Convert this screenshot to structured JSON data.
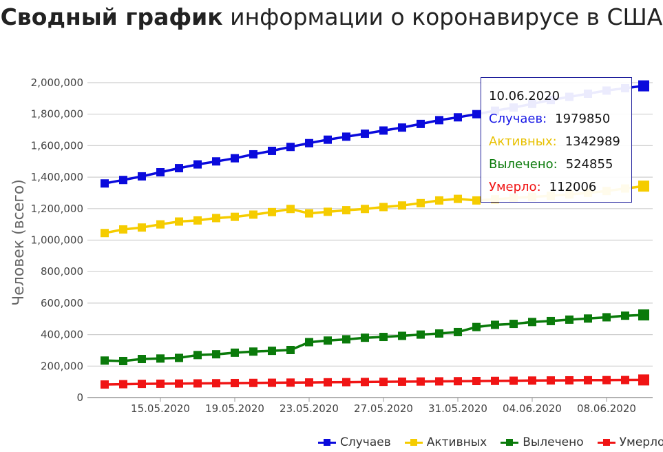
{
  "title": {
    "bold": "Сводный график",
    "rest": " информации о коронавирусе в США"
  },
  "chart_data": {
    "type": "line",
    "title": "Сводный график информации о коронавирусе в США",
    "ylabel": "Человек (всего)",
    "xlabel": "",
    "ylim": [
      0,
      2000000
    ],
    "yticks": [
      0,
      200000,
      400000,
      600000,
      800000,
      1000000,
      1200000,
      1400000,
      1600000,
      1800000,
      2000000
    ],
    "ytick_labels": [
      "0",
      "200,000",
      "400,000",
      "600,000",
      "800,000",
      "1,000,000",
      "1,200,000",
      "1,400,000",
      "1,600,000",
      "1,800,000",
      "2,000,000"
    ],
    "xtick_labels": [
      "15.05.2020",
      "19.05.2020",
      "23.05.2020",
      "27.05.2020",
      "31.05.2020",
      "04.06.2020",
      "08.06.2020"
    ],
    "x": [
      "12.05.2020",
      "13.05.2020",
      "14.05.2020",
      "15.05.2020",
      "16.05.2020",
      "17.05.2020",
      "18.05.2020",
      "19.05.2020",
      "20.05.2020",
      "21.05.2020",
      "22.05.2020",
      "23.05.2020",
      "24.05.2020",
      "25.05.2020",
      "26.05.2020",
      "27.05.2020",
      "28.05.2020",
      "29.05.2020",
      "30.05.2020",
      "31.05.2020",
      "01.06.2020",
      "02.06.2020",
      "03.06.2020",
      "04.06.2020",
      "05.06.2020",
      "06.06.2020",
      "07.06.2020",
      "08.06.2020",
      "09.06.2020",
      "10.06.2020"
    ],
    "grid": true,
    "legend_position": "bottom-right",
    "series": [
      {
        "name": "Случаев",
        "color": "#0a0adc",
        "values": [
          1360000,
          1382000,
          1405000,
          1431000,
          1457000,
          1481000,
          1500000,
          1520000,
          1545000,
          1567000,
          1592000,
          1616000,
          1638000,
          1657000,
          1676000,
          1696000,
          1715000,
          1738000,
          1762000,
          1780000,
          1800000,
          1822000,
          1842000,
          1865000,
          1890000,
          1910000,
          1930000,
          1950000,
          1965000,
          1979850
        ]
      },
      {
        "name": "Активных",
        "color": "#f5cc00",
        "values": [
          1045000,
          1068000,
          1080000,
          1100000,
          1118000,
          1125000,
          1140000,
          1148000,
          1162000,
          1178000,
          1198000,
          1170000,
          1180000,
          1190000,
          1198000,
          1210000,
          1220000,
          1235000,
          1252000,
          1262000,
          1252000,
          1260000,
          1268000,
          1275000,
          1282000,
          1290000,
          1300000,
          1312000,
          1328000,
          1342989
        ]
      },
      {
        "name": "Вылечено",
        "color": "#0a7a0a",
        "values": [
          235000,
          232000,
          245000,
          248000,
          252000,
          270000,
          275000,
          285000,
          292000,
          297000,
          302000,
          352000,
          362000,
          370000,
          380000,
          385000,
          392000,
          400000,
          407000,
          416000,
          448000,
          462000,
          468000,
          480000,
          486000,
          495000,
          502000,
          510000,
          520000,
          524855
        ]
      },
      {
        "name": "Умерло",
        "color": "#f01414",
        "values": [
          83000,
          85000,
          87000,
          88000,
          89000,
          90000,
          91000,
          92000,
          93000,
          94000,
          95000,
          96000,
          97000,
          98000,
          99000,
          100000,
          101000,
          102000,
          103000,
          104000,
          105000,
          106000,
          107000,
          108000,
          108800,
          109500,
          110200,
          110800,
          111400,
          112006
        ]
      }
    ]
  },
  "tooltip": {
    "date": "10.06.2020",
    "rows": [
      {
        "label": "Случаев:",
        "value": "1979850",
        "color": "#1a1ae6"
      },
      {
        "label": "Активных:",
        "value": "1342989",
        "color": "#e8c000"
      },
      {
        "label": "Вылечено:",
        "value": "524855",
        "color": "#0a7a0a"
      },
      {
        "label": "Умерло:",
        "value": "112006",
        "color": "#f01414"
      }
    ]
  },
  "legend": {
    "items": [
      {
        "label": "Случаев",
        "color": "#0a0adc"
      },
      {
        "label": "Активных",
        "color": "#f5cc00"
      },
      {
        "label": "Вылечено",
        "color": "#0a7a0a"
      },
      {
        "label": "Умерло",
        "color": "#f01414"
      }
    ]
  }
}
